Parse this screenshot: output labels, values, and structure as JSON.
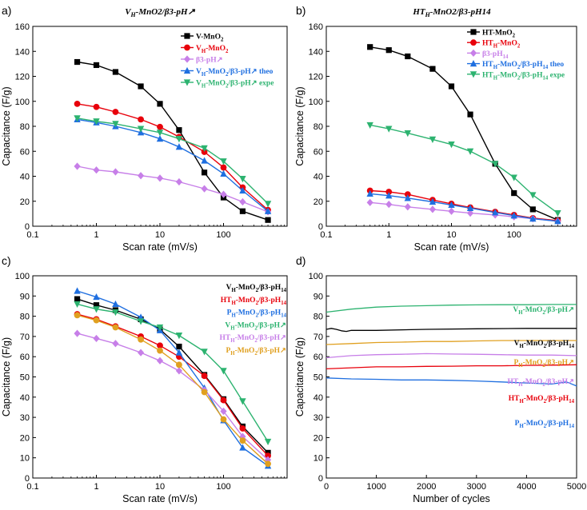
{
  "chart_data": [
    {
      "panel_label": "a)",
      "title": "V_H-MnO2/β3-pH↗",
      "type": "line",
      "x_scale": "log",
      "xlim": [
        0.1,
        1000
      ],
      "ylim": [
        0,
        160
      ],
      "xlabel": "Scan rate (mV/s)",
      "ylabel": "Capacitance (F/g)",
      "x_tick_labels": [
        "0.1",
        "1",
        "10",
        "100"
      ],
      "y_tick_labels": [
        "0",
        "20",
        "40",
        "60",
        "80",
        "100",
        "120",
        "140",
        "160"
      ],
      "x": [
        0.5,
        1,
        2,
        5,
        10,
        20,
        50,
        100,
        200,
        500
      ],
      "legend_position": "top-right",
      "series": [
        {
          "name": "V-MnO₂",
          "color": "#000000",
          "marker": "square",
          "values": [
            131.5,
            129,
            123.5,
            112,
            98,
            77,
            43,
            23,
            12,
            5
          ]
        },
        {
          "name": "V_H-MnO₂",
          "color": "#e8000b",
          "marker": "circle",
          "values": [
            98,
            95.5,
            91.5,
            85.5,
            79.5,
            71.5,
            59.5,
            47,
            31,
            13
          ]
        },
        {
          "name": "β3-pH↗",
          "color": "#c77fe8",
          "marker": "diamond",
          "values": [
            48,
            45,
            43.5,
            40.5,
            38.5,
            35.5,
            30,
            25.5,
            19.5,
            11.5
          ]
        },
        {
          "name": "V_H-MnO₂/β3-pH↗ theo",
          "color": "#1f6fe0",
          "marker": "triangle-up",
          "values": [
            85.5,
            83,
            80,
            75,
            70,
            63.5,
            52.5,
            42,
            28.5,
            12
          ]
        },
        {
          "name": "V_H-MnO₂/β3-pH↗ expe",
          "color": "#2db370",
          "marker": "triangle-down",
          "values": [
            86.5,
            84,
            82,
            78,
            75,
            70,
            62.5,
            52,
            38,
            18
          ]
        }
      ]
    },
    {
      "panel_label": "b)",
      "title": "HT_H-MnO2/β3-pH14",
      "type": "line",
      "x_scale": "log",
      "xlim": [
        0.1,
        1000
      ],
      "ylim": [
        0,
        160
      ],
      "xlabel": "Scan rate (mV/s)",
      "ylabel": "Capacitance (F/g)",
      "x_tick_labels": [
        "0.1",
        "1",
        "10",
        "100"
      ],
      "y_tick_labels": [
        "0",
        "20",
        "40",
        "60",
        "80",
        "100",
        "120",
        "140",
        "160"
      ],
      "x": [
        0.5,
        1,
        2,
        5,
        10,
        20,
        50,
        100,
        200,
        500
      ],
      "legend_position": "top-right",
      "series": [
        {
          "name": "HT-MnO₂",
          "color": "#000000",
          "marker": "square",
          "values": [
            143.5,
            141,
            136,
            126,
            112,
            89.5,
            50,
            26.5,
            13.5,
            5
          ]
        },
        {
          "name": "HT_H-MnO₂",
          "color": "#e8000b",
          "marker": "circle",
          "values": [
            28.5,
            27.5,
            25.5,
            21,
            18,
            15,
            11.5,
            9,
            6.5,
            4.5
          ]
        },
        {
          "name": "β3-pH₁₄",
          "color": "#c77fe8",
          "marker": "diamond",
          "values": [
            19,
            17.5,
            15.5,
            13.5,
            12,
            10.5,
            9,
            7.5,
            6,
            4
          ]
        },
        {
          "name": "HT_H-MnO₂/β3-pH₁₄ theo",
          "color": "#1f6fe0",
          "marker": "triangle-up",
          "values": [
            26,
            24.5,
            22.5,
            19.5,
            17,
            14.5,
            11,
            8.5,
            6,
            4
          ]
        },
        {
          "name": "HT_H-MnO₂/β3-pH₁₄ expe",
          "color": "#2db370",
          "marker": "triangle-down",
          "values": [
            81,
            78,
            74.5,
            69.5,
            65.5,
            60,
            50,
            39,
            25,
            10.5
          ]
        }
      ]
    },
    {
      "panel_label": "c)",
      "type": "line",
      "x_scale": "log",
      "xlim": [
        0.1,
        1000
      ],
      "ylim": [
        0,
        100
      ],
      "xlabel": "Scan rate (mV/s)",
      "ylabel": "Capacitance (F/g)",
      "x_tick_labels": [
        "0.1",
        "1",
        "10",
        "100"
      ],
      "y_tick_labels": [
        "0",
        "10",
        "20",
        "30",
        "40",
        "50",
        "60",
        "70",
        "80",
        "90",
        "100"
      ],
      "x": [
        0.5,
        1,
        2,
        5,
        10,
        20,
        50,
        100,
        200,
        500
      ],
      "legend_position": "top-right",
      "series": [
        {
          "name": "V_H-MnO₂/β3-pH₁₄",
          "color": "#000000",
          "marker": "square",
          "values": [
            88.5,
            85.5,
            83,
            78.5,
            73.5,
            65,
            51,
            39,
            25.5,
            12.5
          ]
        },
        {
          "name": "HT_H-MnO₂/β3-pH₁₄",
          "color": "#e8000b",
          "marker": "circle",
          "values": [
            81,
            78.5,
            75,
            70,
            65.5,
            60,
            50.5,
            38.5,
            24.5,
            11
          ]
        },
        {
          "name": "P_H-MnO₂/β3-pH₁₄",
          "color": "#1f6fe0",
          "marker": "triangle-up",
          "values": [
            92.5,
            89.5,
            86,
            79.5,
            73,
            62,
            44.5,
            28.5,
            15,
            6
          ]
        },
        {
          "name": "V_H-MnO₂/β3-pH↗",
          "color": "#2db370",
          "marker": "triangle-down",
          "values": [
            86,
            83.5,
            82,
            77.5,
            74.5,
            70.5,
            62.5,
            53,
            38,
            18
          ]
        },
        {
          "name": "HT_H-MnO₂/β3-pH↗",
          "color": "#c77fe8",
          "marker": "diamond",
          "values": [
            71.5,
            69,
            66.5,
            62,
            58,
            53,
            43.5,
            33,
            20.5,
            9
          ]
        },
        {
          "name": "P_H-MnO₂/β3-pH↗",
          "color": "#e0a020",
          "marker": "circle",
          "values": [
            80.5,
            78,
            74.5,
            68.5,
            63,
            56,
            42.5,
            29,
            18.5,
            7
          ]
        }
      ]
    },
    {
      "panel_label": "d)",
      "type": "line",
      "xlim": [
        0,
        5000
      ],
      "ylim": [
        0,
        100
      ],
      "xlabel": "Number of cycles",
      "ylabel": "Capacitance (F/g)",
      "x_tick_labels": [
        "0",
        "1000",
        "2000",
        "3000",
        "4000",
        "5000"
      ],
      "y_tick_labels": [
        "0",
        "10",
        "20",
        "30",
        "40",
        "50",
        "60",
        "70",
        "80",
        "90",
        "100"
      ],
      "series": [
        {
          "name": "V_H-MnO₂/β3-pH↗",
          "color": "#2db370",
          "x": [
            0,
            500,
            1000,
            1500,
            2000,
            2500,
            3000,
            3500,
            4000,
            4500,
            5000
          ],
          "values": [
            82,
            83.5,
            84.5,
            85,
            85.2,
            85.5,
            85.6,
            85.7,
            85.7,
            85.8,
            85.8
          ]
        },
        {
          "name": "V_H-MnO₂/β3-pH₁₄",
          "color": "#000000",
          "x": [
            0,
            100,
            200,
            300,
            400,
            500,
            1000,
            2000,
            3000,
            4000,
            5000
          ],
          "values": [
            73.5,
            74,
            73.5,
            72.8,
            72.5,
            73,
            73,
            73.5,
            73.8,
            74,
            74
          ]
        },
        {
          "name": "P_H-MnO₂/β3-pH↗",
          "color": "#e0a020",
          "x": [
            0,
            500,
            1000,
            1500,
            2000,
            2500,
            3000,
            3500,
            4000,
            4500,
            5000
          ],
          "values": [
            66,
            66.5,
            67,
            67.2,
            67.5,
            67.5,
            67.8,
            68,
            68,
            68,
            68
          ]
        },
        {
          "name": "HT_H-MnO₂/β3-pH↗",
          "color": "#c77fe8",
          "x": [
            0,
            500,
            1000,
            1500,
            2000,
            2500,
            3000,
            3500,
            4000,
            4500,
            5000
          ],
          "values": [
            59.5,
            60.5,
            61,
            61.2,
            61.5,
            61.3,
            61.2,
            61,
            60.8,
            60.8,
            60.5
          ]
        },
        {
          "name": "HT_H-MnO₂/β3-pH₁₄",
          "color": "#e8000b",
          "x": [
            0,
            500,
            1000,
            1500,
            2000,
            2500,
            3000,
            3500,
            4000,
            4500,
            5000
          ],
          "values": [
            54,
            54.5,
            55,
            55,
            55.2,
            55.3,
            55.5,
            55.5,
            55.7,
            55.8,
            56
          ]
        },
        {
          "name": "P_H-MnO₂/β3-pH₁₄",
          "color": "#1f6fe0",
          "x": [
            0,
            500,
            1000,
            1500,
            2000,
            2500,
            3000,
            3500,
            4000,
            4500,
            4800,
            5000
          ],
          "values": [
            49.5,
            49,
            48.8,
            48.5,
            48.5,
            48.3,
            48,
            47.5,
            47,
            46.5,
            47.5,
            45.5
          ]
        }
      ]
    }
  ]
}
